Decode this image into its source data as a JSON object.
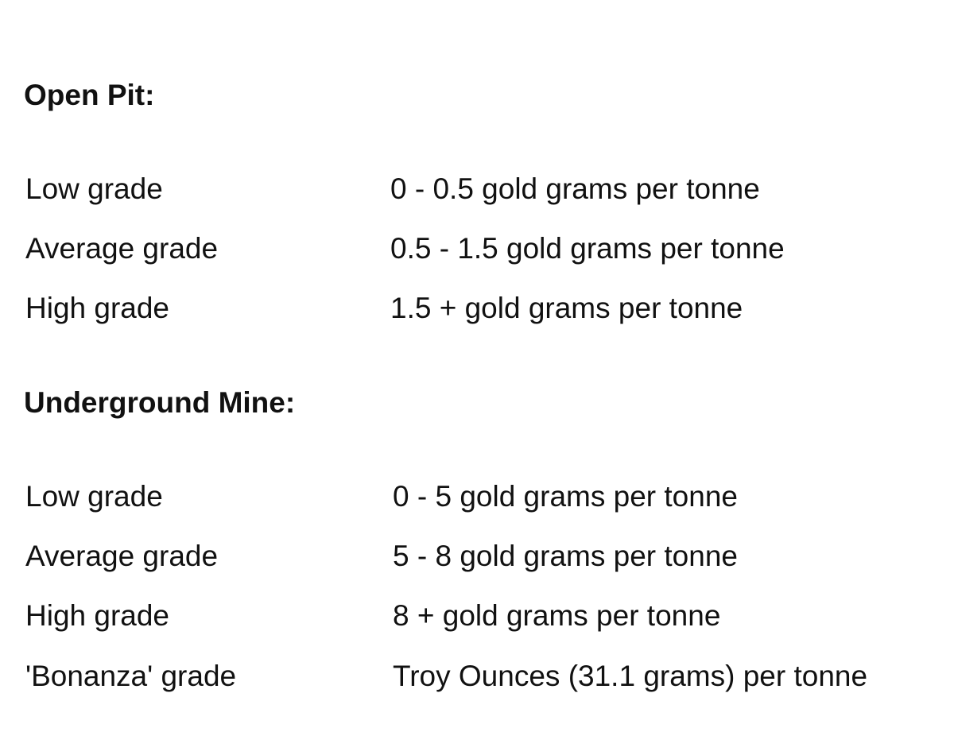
{
  "sections": [
    {
      "heading": "Open Pit:",
      "rows": [
        {
          "label": "Low grade",
          "value": "0 - 0.5 gold grams per tonne"
        },
        {
          "label": "Average grade",
          "value": "0.5 - 1.5 gold grams per tonne"
        },
        {
          "label": "High grade",
          "value": "1.5 + gold grams per tonne"
        }
      ]
    },
    {
      "heading": "Underground Mine:",
      "rows": [
        {
          "label": "Low grade",
          "value": "0 - 5 gold grams per tonne"
        },
        {
          "label": "Average grade",
          "value": "5 - 8 gold grams per tonne"
        },
        {
          "label": "High grade",
          "value": "8 + gold grams per tonne"
        },
        {
          "label": "'Bonanza' grade",
          "value": "Troy Ounces (31.1 grams) per tonne"
        }
      ]
    }
  ]
}
